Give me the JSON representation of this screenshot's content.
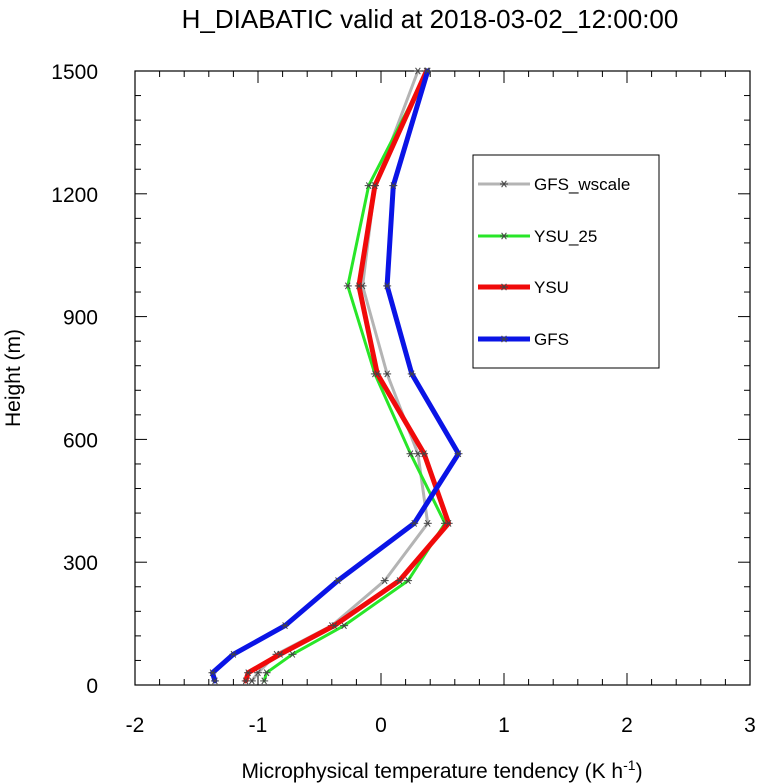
{
  "chart_data": {
    "type": "line",
    "title": "H_DIABATIC valid at 2018-03-02_12:00:00",
    "xlabel": "Microphysical temperature tendency (K h",
    "xlabel_sup": "-1",
    "xlabel_end": ")",
    "ylabel": "Height (m)",
    "xlim": [
      -2,
      3
    ],
    "ylim": [
      0,
      1500
    ],
    "xticks": [
      -2,
      -1,
      0,
      1,
      2,
      3
    ],
    "yticks": [
      0,
      300,
      600,
      900,
      1200,
      1500
    ],
    "xtick_labels": [
      "-2",
      "-1",
      "0",
      "1",
      "2",
      "3"
    ],
    "ytick_labels": [
      "0",
      "300",
      "600",
      "900",
      "1200",
      "1500"
    ],
    "grid": false,
    "legend_position": "top-right",
    "heights": [
      10,
      30,
      75,
      145,
      255,
      395,
      565,
      760,
      975,
      1220,
      1500
    ],
    "series": [
      {
        "name": "GFS_wscale",
        "color": "#b4b4b4",
        "width": 3,
        "values": [
          -1.05,
          -1.0,
          -0.85,
          -0.4,
          0.03,
          0.38,
          0.3,
          0.05,
          -0.15,
          -0.05,
          0.3
        ]
      },
      {
        "name": "YSU_25",
        "color": "#28e628",
        "width": 3,
        "values": [
          -0.95,
          -0.93,
          -0.72,
          -0.3,
          0.22,
          0.52,
          0.24,
          -0.05,
          -0.27,
          -0.1,
          0.38
        ]
      },
      {
        "name": "YSU",
        "color": "#f00a0a",
        "width": 5,
        "values": [
          -1.1,
          -1.08,
          -0.82,
          -0.38,
          0.15,
          0.55,
          0.35,
          -0.03,
          -0.18,
          -0.05,
          0.37
        ]
      },
      {
        "name": "GFS",
        "color": "#0a14e6",
        "width": 5,
        "values": [
          -1.35,
          -1.37,
          -1.2,
          -0.78,
          -0.35,
          0.27,
          0.63,
          0.25,
          0.05,
          0.1,
          0.38
        ]
      }
    ]
  }
}
